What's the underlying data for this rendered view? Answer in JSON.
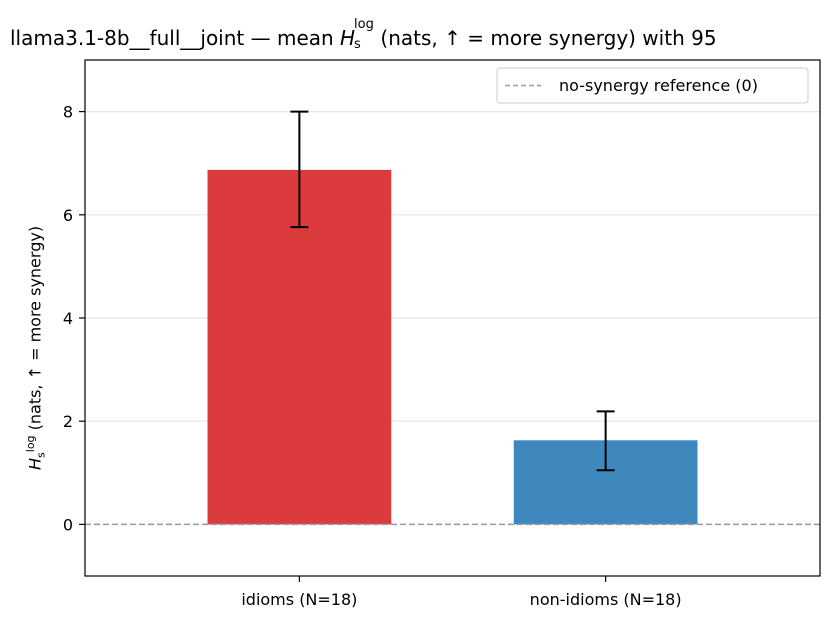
{
  "chart_data": {
    "type": "bar",
    "title_prefix": "llama3.1-8b__full__joint — mean ",
    "title_symbol": "H",
    "title_sup": "log",
    "title_sub": "s",
    "title_suffix": " (nats, ↑ = more synergy) with 95",
    "ylabel_symbol": "H",
    "ylabel_sup": "log",
    "ylabel_sub": "s",
    "ylabel_suffix": " (nats, ↑ = more synergy)",
    "categories": [
      "idioms (N=18)",
      "non-idioms (N=18)"
    ],
    "values": [
      6.87,
      1.63
    ],
    "ci_low": [
      5.76,
      1.05
    ],
    "ci_high": [
      8.0,
      2.19
    ],
    "colors": [
      "#dc3b3d",
      "#3f88be"
    ],
    "ylim": [
      -1.0,
      9.0
    ],
    "yticks": [
      0,
      2,
      4,
      6,
      8
    ],
    "reference_line": {
      "value": 0,
      "label": "no-synergy reference (0)",
      "color": "#999999"
    },
    "grid": "horizontal",
    "legend_position": "top-right"
  }
}
